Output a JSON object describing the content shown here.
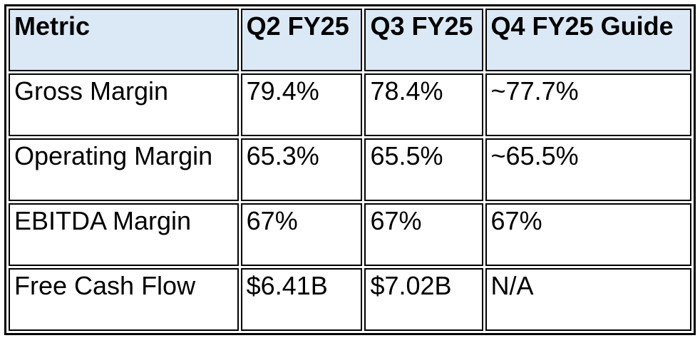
{
  "table": {
    "columns": [
      "Metric",
      "Q2 FY25",
      "Q3 FY25",
      "Q4 FY25 Guide"
    ],
    "rows": [
      [
        "Gross Margin",
        "79.4%",
        "78.4%",
        "~77.7%"
      ],
      [
        "Operating Margin",
        "65.3%",
        "65.5%",
        "~65.5%"
      ],
      [
        "EBITDA Margin",
        "67%",
        "67%",
        "67%"
      ],
      [
        "Free Cash Flow",
        "$6.41B",
        "$7.02B",
        "N/A"
      ]
    ]
  },
  "colors": {
    "header_bg": "#dbe8f6",
    "border": "#000000",
    "text": "#000000",
    "page_bg": "#ffffff"
  },
  "chart_data": {
    "type": "table",
    "title": "",
    "columns": [
      "Metric",
      "Q2 FY25",
      "Q3 FY25",
      "Q4 FY25 Guide"
    ],
    "rows": [
      {
        "metric": "Gross Margin",
        "q2_fy25": "79.4%",
        "q3_fy25": "78.4%",
        "q4_fy25_guide": "~77.7%"
      },
      {
        "metric": "Operating Margin",
        "q2_fy25": "65.3%",
        "q3_fy25": "65.5%",
        "q4_fy25_guide": "~65.5%"
      },
      {
        "metric": "EBITDA Margin",
        "q2_fy25": "67%",
        "q3_fy25": "67%",
        "q4_fy25_guide": "67%"
      },
      {
        "metric": "Free Cash Flow",
        "q2_fy25": "$6.41B",
        "q3_fy25": "$7.02B",
        "q4_fy25_guide": "N/A"
      }
    ],
    "layout": {
      "header_background": "#dbe8f6",
      "border_color": "#000000",
      "grid": true
    }
  }
}
